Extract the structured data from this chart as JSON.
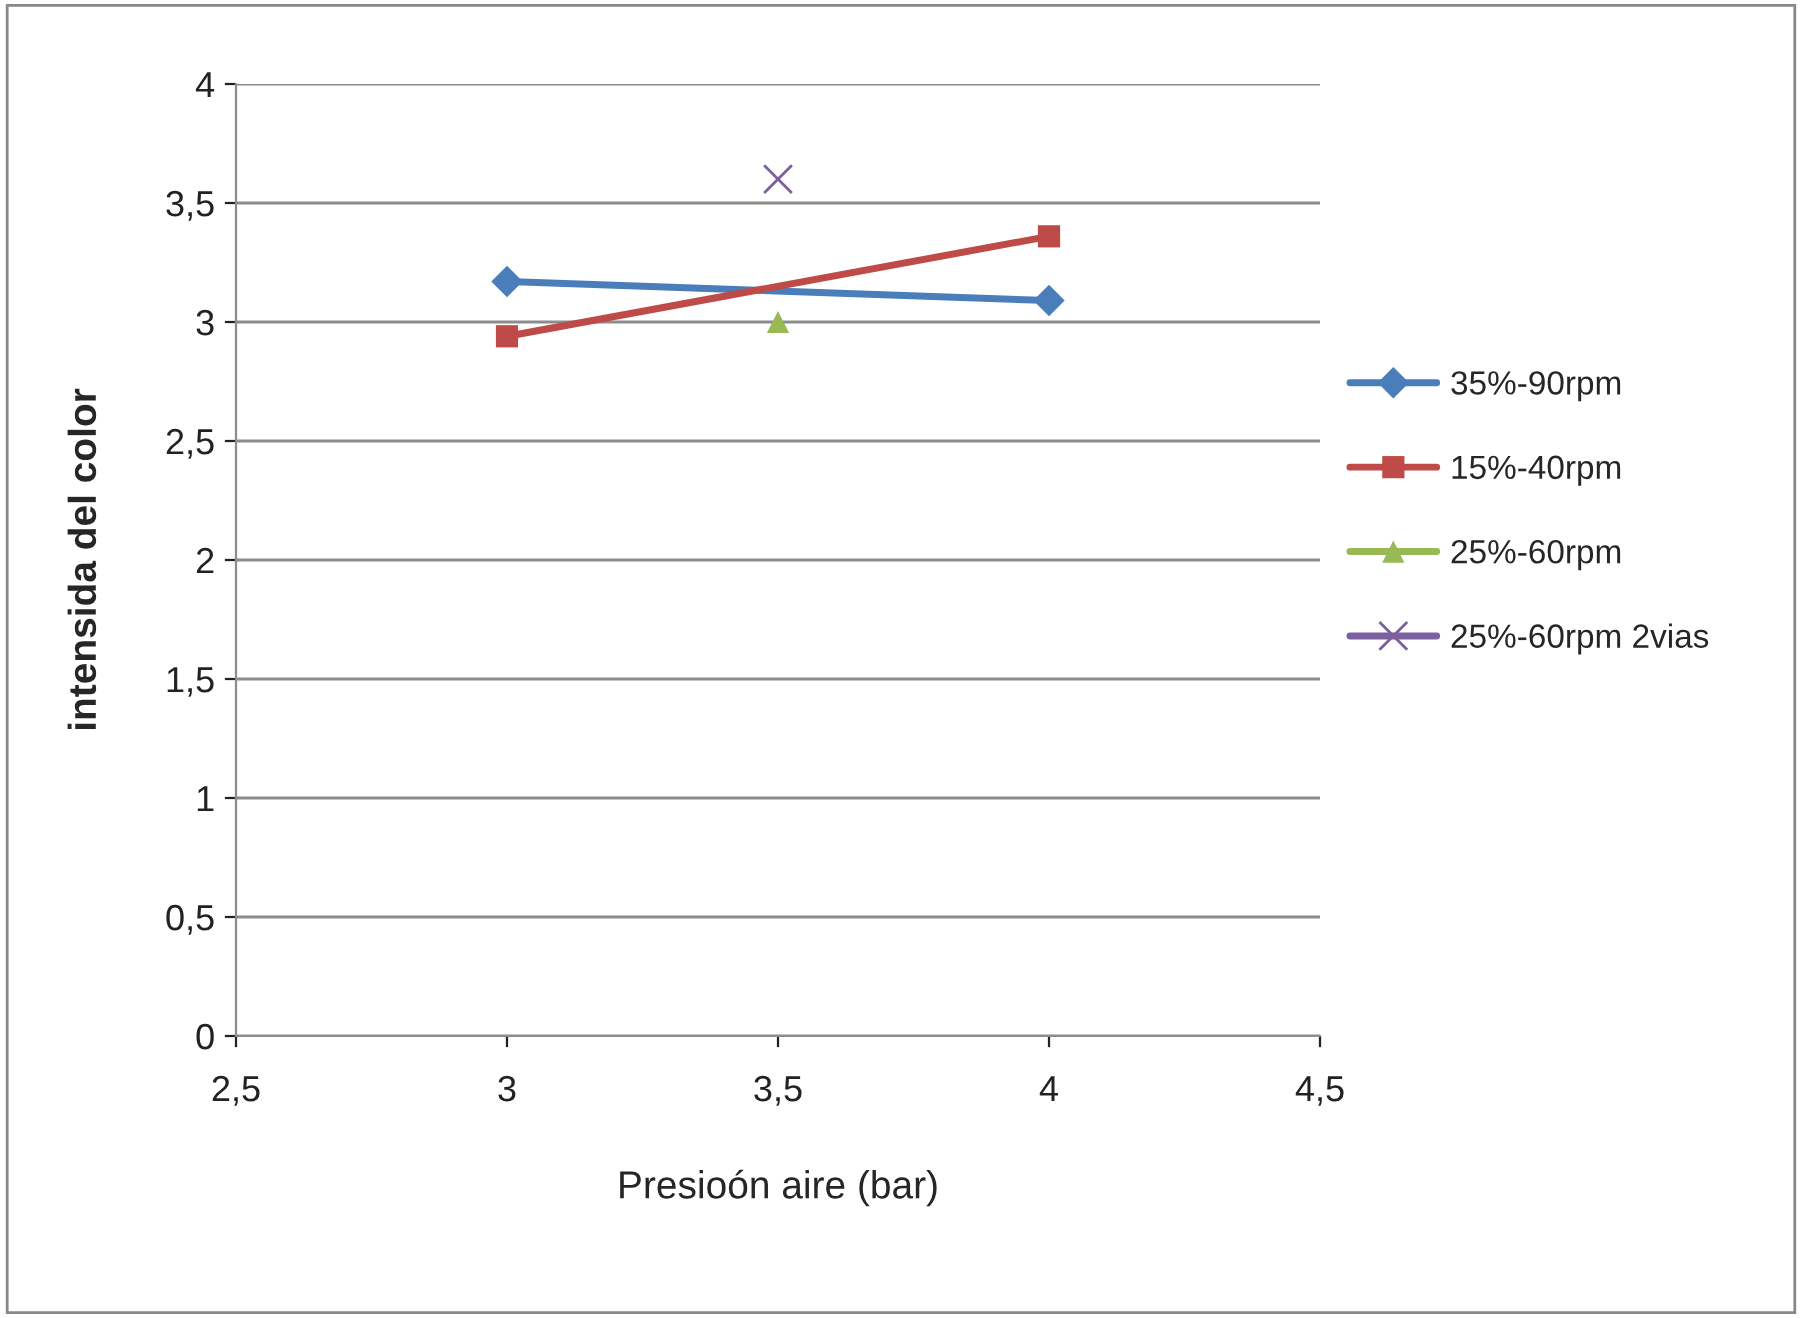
{
  "chart_data": {
    "type": "line",
    "xlabel": "Presioón aire (bar)",
    "ylabel": "intensida del color",
    "xlim": [
      2.5,
      4.5
    ],
    "xticks": [
      {
        "value": 2.5,
        "label": "2,5"
      },
      3,
      {
        "value": 3.5,
        "label": "3,5"
      },
      4,
      {
        "value": 4.5,
        "label": "4,5"
      }
    ],
    "ylim": [
      0,
      4
    ],
    "yticks": [
      0,
      {
        "value": 0.5,
        "label": "0,5"
      },
      1,
      {
        "value": 1.5,
        "label": "1,5"
      },
      2,
      {
        "value": 2.5,
        "label": "2,5"
      },
      3,
      {
        "value": 3.5,
        "label": "3,5"
      },
      4
    ],
    "grid": "y",
    "legend": "right",
    "series": [
      {
        "name": "35%-90rpm",
        "color": "#4a7ebb",
        "marker": "diamond",
        "x": [
          3,
          4
        ],
        "values": [
          3.17,
          3.09
        ]
      },
      {
        "name": "15%-40rpm",
        "color": "#be4b48",
        "marker": "square",
        "x": [
          3,
          4
        ],
        "values": [
          2.94,
          3.36
        ]
      },
      {
        "name": "25%-60rpm",
        "color": "#98b954",
        "marker": "triangle",
        "x": [
          3.5
        ],
        "values": [
          3.0
        ]
      },
      {
        "name": "25%-60rpm 2vias",
        "color": "#7d60a0",
        "marker": "cross",
        "x": [
          3.5
        ],
        "values": [
          3.6
        ]
      }
    ]
  }
}
